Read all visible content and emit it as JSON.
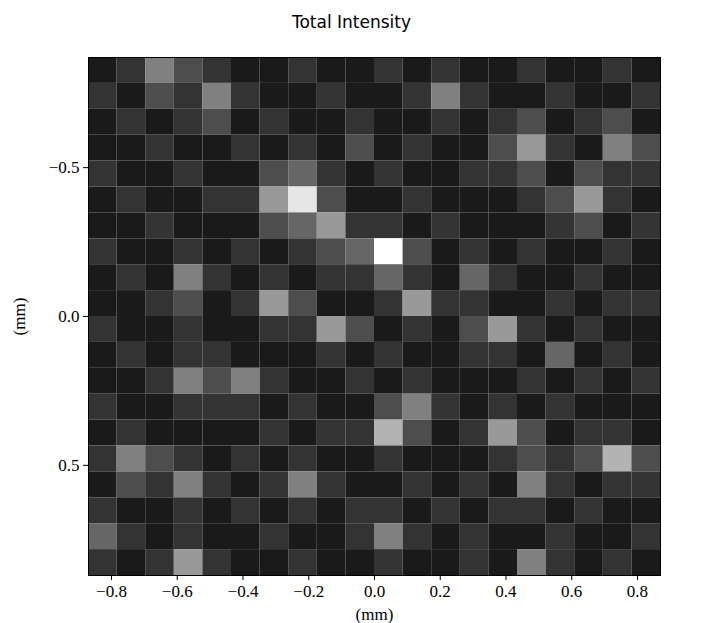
{
  "chart_data": {
    "type": "heatmap",
    "title": "Total Intensity",
    "x_label": "(mm)",
    "y_label": "(mm)",
    "xlim": [
      -0.87,
      0.87
    ],
    "ylim": [
      0.87,
      -0.87
    ],
    "xticks": [
      {
        "value": -0.8,
        "label": "−0.8"
      },
      {
        "value": -0.6,
        "label": "−0.6"
      },
      {
        "value": -0.4,
        "label": "−0.4"
      },
      {
        "value": -0.2,
        "label": "−0.2"
      },
      {
        "value": 0,
        "label": "0.0"
      },
      0.2,
      0.4,
      0.6,
      0.8
    ],
    "yticks": [
      {
        "value": -0.5,
        "label": "−0.5"
      },
      {
        "value": 0,
        "label": "0.0"
      },
      0.5
    ],
    "zlim": [
      0,
      1
    ],
    "cells": [
      [
        0.1,
        0.2,
        0.5,
        0.3,
        0.2,
        0.1,
        0.1,
        0.2,
        0.1,
        0.1,
        0.2,
        0.1,
        0.2,
        0.1,
        0.1,
        0.2,
        0.1,
        0.1,
        0.2,
        0.1
      ],
      [
        0.2,
        0.1,
        0.3,
        0.2,
        0.5,
        0.2,
        0.1,
        0.1,
        0.2,
        0.1,
        0.1,
        0.2,
        0.5,
        0.2,
        0.1,
        0.1,
        0.2,
        0.1,
        0.1,
        0.2
      ],
      [
        0.1,
        0.2,
        0.1,
        0.2,
        0.3,
        0.1,
        0.2,
        0.1,
        0.1,
        0.2,
        0.1,
        0.1,
        0.2,
        0.1,
        0.2,
        0.3,
        0.1,
        0.2,
        0.3,
        0.1
      ],
      [
        0.1,
        0.1,
        0.2,
        0.1,
        0.1,
        0.2,
        0.1,
        0.2,
        0.1,
        0.3,
        0.1,
        0.2,
        0.1,
        0.1,
        0.3,
        0.6,
        0.2,
        0.1,
        0.5,
        0.3
      ],
      [
        0.2,
        0.1,
        0.1,
        0.2,
        0.1,
        0.1,
        0.3,
        0.4,
        0.2,
        0.1,
        0.2,
        0.1,
        0.1,
        0.2,
        0.2,
        0.3,
        0.1,
        0.3,
        0.2,
        0.2
      ],
      [
        0.1,
        0.2,
        0.1,
        0.1,
        0.2,
        0.2,
        0.6,
        0.9,
        0.3,
        0.1,
        0.1,
        0.2,
        0.1,
        0.1,
        0.1,
        0.2,
        0.3,
        0.6,
        0.2,
        0.1
      ],
      [
        0.1,
        0.1,
        0.2,
        0.1,
        0.1,
        0.1,
        0.3,
        0.4,
        0.6,
        0.2,
        0.2,
        0.1,
        0.2,
        0.1,
        0.1,
        0.1,
        0.2,
        0.3,
        0.1,
        0.2
      ],
      [
        0.2,
        0.1,
        0.1,
        0.2,
        0.1,
        0.2,
        0.1,
        0.2,
        0.3,
        0.4,
        1.0,
        0.3,
        0.1,
        0.2,
        0.1,
        0.2,
        0.1,
        0.1,
        0.2,
        0.1
      ],
      [
        0.1,
        0.2,
        0.1,
        0.5,
        0.2,
        0.1,
        0.2,
        0.1,
        0.2,
        0.2,
        0.4,
        0.2,
        0.1,
        0.4,
        0.2,
        0.1,
        0.1,
        0.2,
        0.1,
        0.1
      ],
      [
        0.1,
        0.1,
        0.2,
        0.3,
        0.1,
        0.2,
        0.6,
        0.3,
        0.1,
        0.1,
        0.2,
        0.6,
        0.2,
        0.2,
        0.1,
        0.1,
        0.2,
        0.1,
        0.2,
        0.2
      ],
      [
        0.2,
        0.1,
        0.1,
        0.2,
        0.1,
        0.1,
        0.2,
        0.2,
        0.6,
        0.3,
        0.1,
        0.2,
        0.1,
        0.3,
        0.6,
        0.2,
        0.1,
        0.2,
        0.1,
        0.1
      ],
      [
        0.1,
        0.2,
        0.1,
        0.2,
        0.2,
        0.1,
        0.1,
        0.1,
        0.2,
        0.1,
        0.2,
        0.1,
        0.1,
        0.2,
        0.2,
        0.1,
        0.4,
        0.1,
        0.2,
        0.1
      ],
      [
        0.1,
        0.1,
        0.2,
        0.5,
        0.3,
        0.5,
        0.2,
        0.1,
        0.1,
        0.2,
        0.1,
        0.2,
        0.1,
        0.1,
        0.1,
        0.2,
        0.1,
        0.2,
        0.1,
        0.2
      ],
      [
        0.2,
        0.1,
        0.1,
        0.2,
        0.2,
        0.2,
        0.1,
        0.2,
        0.1,
        0.1,
        0.3,
        0.5,
        0.2,
        0.1,
        0.2,
        0.1,
        0.2,
        0.1,
        0.1,
        0.1
      ],
      [
        0.1,
        0.2,
        0.1,
        0.1,
        0.1,
        0.1,
        0.2,
        0.1,
        0.2,
        0.2,
        0.7,
        0.3,
        0.1,
        0.2,
        0.6,
        0.3,
        0.1,
        0.2,
        0.2,
        0.1
      ],
      [
        0.2,
        0.5,
        0.3,
        0.2,
        0.1,
        0.2,
        0.1,
        0.2,
        0.1,
        0.1,
        0.2,
        0.1,
        0.1,
        0.1,
        0.2,
        0.3,
        0.2,
        0.3,
        0.7,
        0.3
      ],
      [
        0.1,
        0.3,
        0.2,
        0.5,
        0.2,
        0.1,
        0.2,
        0.5,
        0.2,
        0.1,
        0.1,
        0.2,
        0.1,
        0.2,
        0.1,
        0.5,
        0.2,
        0.1,
        0.2,
        0.2
      ],
      [
        0.2,
        0.1,
        0.1,
        0.2,
        0.1,
        0.2,
        0.1,
        0.2,
        0.1,
        0.2,
        0.2,
        0.1,
        0.2,
        0.1,
        0.2,
        0.2,
        0.1,
        0.2,
        0.1,
        0.1
      ],
      [
        0.4,
        0.2,
        0.1,
        0.2,
        0.1,
        0.1,
        0.2,
        0.1,
        0.1,
        0.2,
        0.5,
        0.2,
        0.1,
        0.2,
        0.1,
        0.1,
        0.2,
        0.1,
        0.1,
        0.2
      ],
      [
        0.2,
        0.1,
        0.2,
        0.6,
        0.2,
        0.1,
        0.1,
        0.2,
        0.1,
        0.1,
        0.2,
        0.1,
        0.1,
        0.2,
        0.1,
        0.5,
        0.2,
        0.1,
        0.2,
        0.1
      ]
    ]
  }
}
